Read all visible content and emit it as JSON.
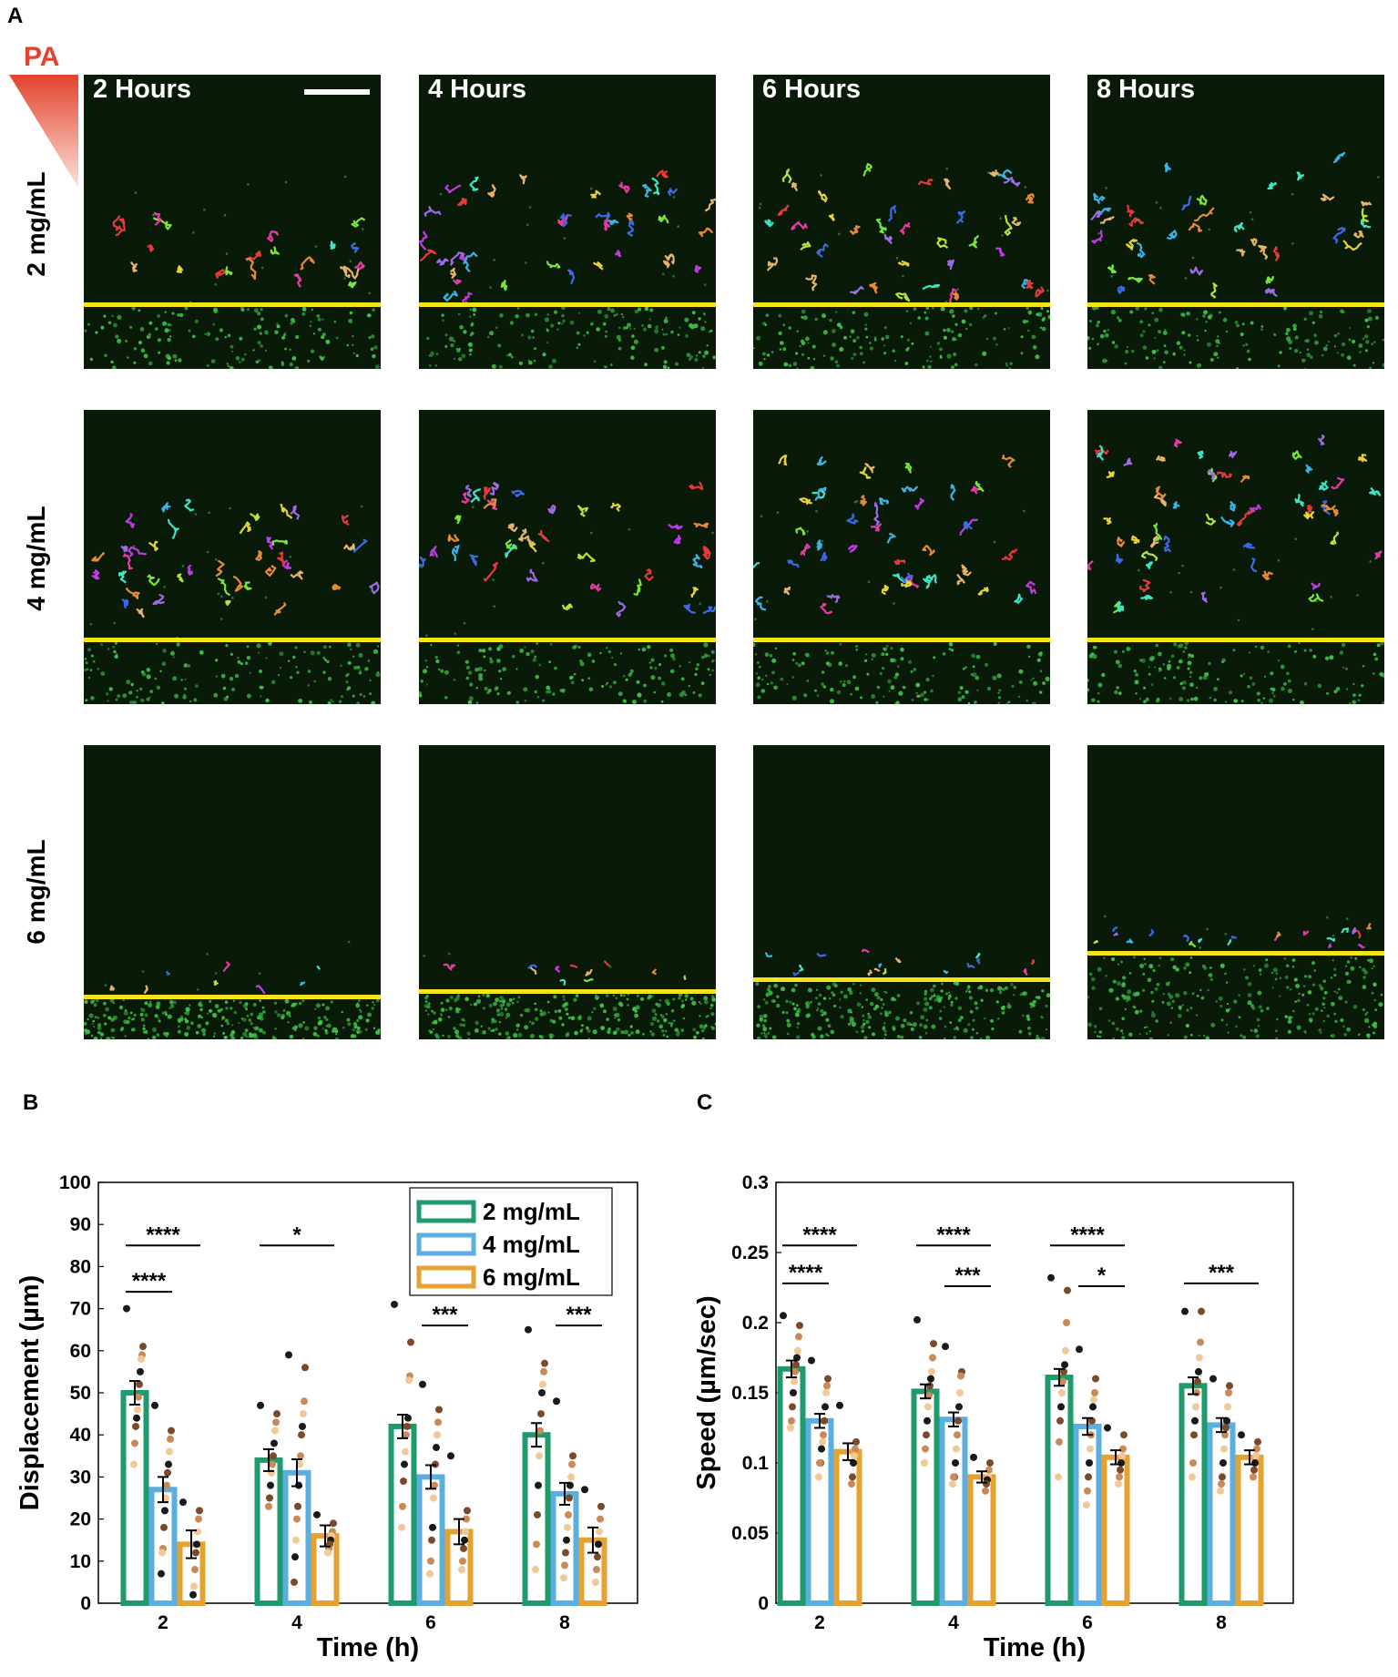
{
  "panels": {
    "A": "A",
    "B": "B",
    "C": "C"
  },
  "gradient_label": "PA",
  "micrographs": {
    "time_labels": [
      "2 Hours",
      "4 Hours",
      "6 Hours",
      "8 Hours"
    ],
    "row_labels": [
      "2 mg/mL",
      "4 mg/mL",
      "6 mg/mL"
    ],
    "colors": {
      "background": "#0a1a08",
      "boundary_line": "#f2e418",
      "cells": "#3fc24a"
    }
  },
  "chart_data": [
    {
      "id": "B",
      "type": "bar",
      "categories": [
        "2",
        "4",
        "6",
        "8"
      ],
      "xlabel": "Time (h)",
      "ylabel": "Displacement (µm)",
      "ylim": [
        0,
        100
      ],
      "yticks": [
        0,
        10,
        20,
        30,
        40,
        50,
        60,
        70,
        80,
        90,
        100
      ],
      "legend_position": "top-right",
      "series": [
        {
          "name": "2 mg/mL",
          "color": "#1f9a6a",
          "values": [
            50,
            34,
            42,
            40
          ],
          "err": [
            2.8,
            2.6,
            2.8,
            2.8
          ],
          "points": [
            [
              70,
              61,
              59,
              58,
              55,
              52,
              49,
              46,
              44,
              42,
              38,
              33
            ],
            [
              47,
              45,
              43,
              41,
              38,
              35,
              33,
              31,
              28,
              25,
              23
            ],
            [
              71,
              62,
              54,
              53,
              44,
              42,
              40,
              36,
              33,
              29,
              23,
              18
            ],
            [
              65,
              57,
              55,
              52,
              50,
              45,
              41,
              35,
              28,
              21,
              14,
              8
            ]
          ]
        },
        {
          "name": "4 mg/mL",
          "color": "#5aaee0",
          "values": [
            27,
            31,
            30,
            26
          ],
          "err": [
            3.0,
            3.2,
            2.8,
            2.6
          ],
          "points": [
            [
              47,
              41,
              39,
              36,
              33,
              31,
              28,
              25,
              22,
              18,
              13,
              12,
              7
            ],
            [
              59,
              56,
              48,
              45,
              42,
              40,
              35,
              33,
              28,
              23,
              20,
              15,
              11,
              5
            ],
            [
              52,
              46,
              43,
              40,
              37,
              33,
              28,
              25,
              18,
              15,
              10,
              7
            ],
            [
              48,
              35,
              33,
              30,
              28,
              25,
              21,
              18,
              15,
              12,
              9,
              6
            ]
          ]
        },
        {
          "name": "6 mg/mL",
          "color": "#e6a230",
          "values": [
            14,
            16,
            17,
            15
          ],
          "err": [
            3.3,
            2.5,
            3.0,
            3.0
          ],
          "points": [
            [
              24,
              22,
              20,
              17,
              14,
              12,
              8,
              4,
              2
            ],
            [
              21,
              19,
              17,
              16,
              15,
              14,
              13,
              12
            ],
            [
              35,
              22,
              20,
              17,
              15,
              13,
              10,
              8
            ],
            [
              27,
              23,
              20,
              17,
              14,
              11,
              8,
              5
            ]
          ]
        }
      ],
      "significance": [
        {
          "label": "****",
          "x1": "2",
          "s1": 0,
          "x2": "2",
          "s2": 2,
          "y": 85
        },
        {
          "label": "****",
          "x1": "2",
          "s1": 0,
          "x2": "2",
          "s2": 1,
          "y": 74
        },
        {
          "label": "*",
          "x1": "4",
          "s1": 0,
          "x2": "4",
          "s2": 2,
          "y": 85
        },
        {
          "label": "***",
          "x1": "6",
          "s1": 1,
          "x2": "6",
          "s2": 2,
          "y": 66
        },
        {
          "label": "***",
          "x1": "8",
          "s1": 1,
          "x2": "8",
          "s2": 2,
          "y": 66
        }
      ]
    },
    {
      "id": "C",
      "type": "bar",
      "categories": [
        "2",
        "4",
        "6",
        "8"
      ],
      "xlabel": "Time (h)",
      "ylabel": "Speed (µm/sec)",
      "ylim": [
        0,
        0.3
      ],
      "yticks": [
        0,
        0.05,
        0.1,
        0.15,
        0.2,
        0.25,
        0.3
      ],
      "ytick_labels": [
        "0",
        "0.05",
        "0.1",
        "0.15",
        "0.2",
        "0.25",
        "0.3"
      ],
      "series": [
        {
          "name": "2 mg/mL",
          "color": "#1f9a6a",
          "values": [
            0.167,
            0.151,
            0.161,
            0.155
          ],
          "err": [
            0.006,
            0.005,
            0.006,
            0.006
          ],
          "points": [
            [
              0.205,
              0.198,
              0.19,
              0.18,
              0.175,
              0.17,
              0.165,
              0.158,
              0.15,
              0.14,
              0.13,
              0.125
            ],
            [
              0.202,
              0.185,
              0.175,
              0.165,
              0.16,
              0.155,
              0.148,
              0.14,
              0.13,
              0.12,
              0.11,
              0.1
            ],
            [
              0.232,
              0.223,
              0.2,
              0.18,
              0.17,
              0.165,
              0.158,
              0.15,
              0.14,
              0.13,
              0.115,
              0.09
            ],
            [
              0.208,
              0.208,
              0.186,
              0.175,
              0.165,
              0.158,
              0.15,
              0.14,
              0.13,
              0.12,
              0.1,
              0.09
            ]
          ]
        },
        {
          "name": "4 mg/mL",
          "color": "#5aaee0",
          "values": [
            0.13,
            0.131,
            0.126,
            0.127
          ],
          "err": [
            0.005,
            0.005,
            0.006,
            0.005
          ],
          "points": [
            [
              0.173,
              0.16,
              0.155,
              0.15,
              0.14,
              0.13,
              0.12,
              0.115,
              0.11,
              0.1,
              0.1,
              0.09
            ],
            [
              0.183,
              0.165,
              0.162,
              0.15,
              0.14,
              0.13,
              0.12,
              0.11,
              0.1,
              0.09,
              0.09,
              0.085
            ],
            [
              0.181,
              0.16,
              0.15,
              0.145,
              0.14,
              0.13,
              0.12,
              0.11,
              0.1,
              0.09,
              0.08,
              0.07
            ],
            [
              0.16,
              0.155,
              0.15,
              0.14,
              0.13,
              0.125,
              0.12,
              0.11,
              0.1,
              0.09,
              0.085,
              0.08
            ]
          ]
        },
        {
          "name": "6 mg/mL",
          "color": "#e6a230",
          "values": [
            0.108,
            0.09,
            0.104,
            0.104
          ],
          "err": [
            0.006,
            0.004,
            0.005,
            0.005
          ],
          "points": [
            [
              0.141,
              0.115,
              0.11,
              0.105,
              0.1,
              0.09,
              0.085
            ],
            [
              0.104,
              0.1,
              0.095,
              0.09,
              0.088,
              0.085,
              0.08
            ],
            [
              0.125,
              0.12,
              0.11,
              0.105,
              0.1,
              0.095,
              0.09,
              0.085
            ],
            [
              0.12,
              0.115,
              0.11,
              0.105,
              0.1,
              0.095,
              0.09
            ]
          ]
        }
      ],
      "significance": [
        {
          "label": "****",
          "x1": "2",
          "s1": 0,
          "x2": "2",
          "s2": 2,
          "y": 0.255
        },
        {
          "label": "****",
          "x1": "2",
          "s1": 0,
          "x2": "2",
          "s2": 1,
          "y": 0.228
        },
        {
          "label": "****",
          "x1": "4",
          "s1": 0,
          "x2": "4",
          "s2": 2,
          "y": 0.255
        },
        {
          "label": "***",
          "x1": "4",
          "s1": 1,
          "x2": "4",
          "s2": 2,
          "y": 0.226
        },
        {
          "label": "****",
          "x1": "6",
          "s1": 0,
          "x2": "6",
          "s2": 2,
          "y": 0.255
        },
        {
          "label": "*",
          "x1": "6",
          "s1": 1,
          "x2": "6",
          "s2": 2,
          "y": 0.226
        },
        {
          "label": "***",
          "x1": "8",
          "s1": 0,
          "x2": "8",
          "s2": 2,
          "y": 0.228
        }
      ]
    }
  ]
}
